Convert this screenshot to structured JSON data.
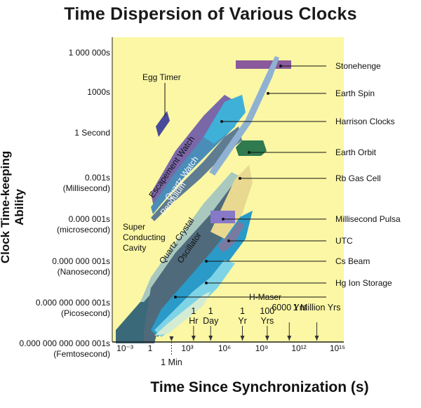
{
  "chart_data": {
    "type": "area",
    "title": "Time Dispersion of Various Clocks",
    "xlabel": "Time Since Synchronization (s)",
    "ylabel": "Clock Time-keeping Ability",
    "x_scale": "log",
    "y_scale": "log",
    "x_tick_labels": [
      "10⁻³",
      "1",
      "10³",
      "10⁶",
      "10⁹",
      "10¹²",
      "10¹⁵"
    ],
    "y_tick_labels": [
      [
        "1 000 000s"
      ],
      [
        "1000s"
      ],
      [
        "1 Second"
      ],
      [
        "0.001s",
        "(Millisecond)"
      ],
      [
        "0.000 001s",
        "(microsecond)"
      ],
      [
        "0.000 000 001s",
        "(Nanosecond)"
      ],
      [
        "0.000 000 000 001s",
        "(Picosecond)"
      ],
      [
        "0.000 000 000 000 001s",
        "(Femtosecond)"
      ]
    ],
    "time_markers": [
      {
        "label": [
          "1 Min"
        ],
        "x": 60,
        "below": true
      },
      {
        "label": [
          "1",
          "Hr"
        ],
        "x": 3600
      },
      {
        "label": [
          "1",
          "Day"
        ],
        "x": 86400
      },
      {
        "label": [
          "1",
          "Yr"
        ],
        "x": 31536000
      },
      {
        "label": [
          "100",
          "Yrs"
        ],
        "x": 3153600000
      },
      {
        "label": [
          "6000 Yrs"
        ],
        "x": 189216000000
      },
      {
        "label": [
          "1 Million Yrs"
        ],
        "x": 31536000000000
      }
    ],
    "legend_labels": [
      "Stonehenge",
      "Earth Spin",
      "Harrison Clocks",
      "Earth Orbit",
      "Rb Gas Cell",
      "Millisecond Pulsa",
      "UTC",
      "Cs Beam",
      "Hg Ion Storage",
      "H-Maser"
    ],
    "inline_labels": {
      "egg_timer": "Egg Timer",
      "escapement": "Escapement Watch",
      "quartz_watch": "Quartz Watch",
      "pendulum": "Pendulum",
      "quartz_osc": "Quartz Crystal",
      "oscillator": "Oscillator",
      "super": [
        "Super",
        "Conducting",
        "Cavity"
      ]
    },
    "colors": {
      "plot_bg": "#fbf7a4",
      "stonehenge": "#8a5a9c",
      "earth_spin": "#8fb1d2",
      "escapement": "#7a67a8",
      "quartz_watch": "#4a8db8",
      "pendulum": "#5f7c91",
      "harrison": "#3fb0d8",
      "earth_orbit": "#2f7a4f",
      "rb": "#e8d890",
      "pulsar": "#8878c8",
      "utc": "#7a7aa0",
      "quartz_osc": "#4f6a7a",
      "cs_beam": "#2a9ac8",
      "hg_ion": "#7ed4e6",
      "h_maser": "#d4ecd4",
      "super_cavity": "#3a6a7a",
      "axis": "#222222"
    }
  }
}
